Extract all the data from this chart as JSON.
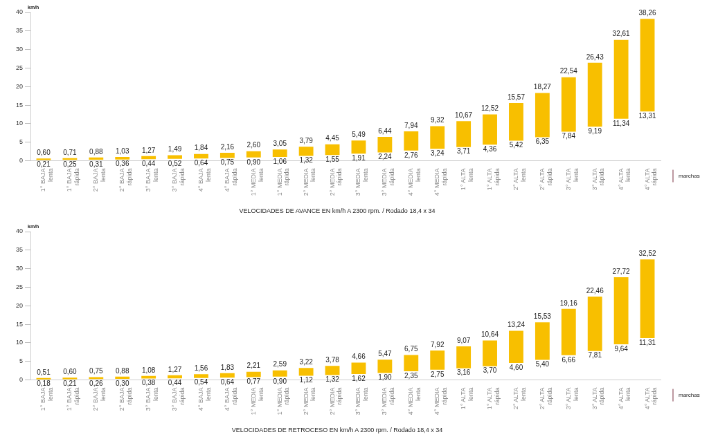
{
  "chart_data": [
    {
      "type": "bar",
      "title": "VELOCIDADES DE AVANCE EN km/h A 2300 rpm. / Rodado 18,4 x 34",
      "xlabel": "marchas",
      "ylabel": "km/h",
      "categories": [
        "1° BAJA\nlenta",
        "1° BAJA\nrápida",
        "2° BAJA\nlenta",
        "2° BAJA\nrápida",
        "3° BAJA\nlenta",
        "3° BAJA\nrápida",
        "4° BAJA\nlenta",
        "4° BAJA\nrápida",
        "1° MEDIA\nlenta",
        "1° MEDIA\nrápida",
        "2° MEDIA\nlenta",
        "2° MEDIA\nrápida",
        "3° MEDIA\nlenta",
        "3° MEDIA\nrápida",
        "4° MEDIA\nlenta",
        "4° MEDIA\nrápida",
        "1° ALTA\nlenta",
        "1° ALTA\nrápida",
        "2° ALTA\nlenta",
        "2° ALTA\nrápida",
        "3° ALTA\nlenta",
        "3° ALTA\nrápida",
        "4° ALTA\nlenta",
        "4° ALTA\nrápida"
      ],
      "base": [
        0.21,
        0.25,
        0.31,
        0.36,
        0.44,
        0.52,
        0.64,
        0.75,
        0.9,
        1.06,
        1.32,
        1.55,
        1.91,
        2.24,
        2.76,
        3.24,
        3.71,
        4.36,
        5.42,
        6.35,
        7.84,
        9.19,
        11.34,
        13.31
      ],
      "values": [
        0.39,
        0.46,
        0.57,
        0.67,
        0.83,
        0.97,
        1.2,
        1.41,
        1.7,
        1.99,
        2.47,
        2.9,
        3.58,
        4.2,
        5.18,
        6.08,
        6.96,
        8.16,
        10.15,
        11.92,
        14.7,
        17.24,
        21.27,
        24.95
      ],
      "color": "#f8bf00",
      "ylim": [
        0,
        40
      ],
      "yticks": [
        0,
        5,
        10,
        15,
        20,
        25,
        30,
        35,
        40
      ],
      "value_labels": [
        "0,60",
        "0,71",
        "0,88",
        "1,03",
        "1,27",
        "1,49",
        "1,84",
        "2,16",
        "2,60",
        "3,05",
        "3,79",
        "4,45",
        "5,49",
        "6,44",
        "7,94",
        "9,32",
        "10,67",
        "12,52",
        "15,57",
        "18,27",
        "22,54",
        "26,43",
        "32,61",
        "38,26"
      ],
      "annotations": [
        {
          "text": "0,21",
          "x": "1° BAJA\nlenta",
          "y": 0.21
        },
        {
          "text": "0,25",
          "x": "1° BAJA\nrápida",
          "y": 0.25
        },
        {
          "text": "0,31",
          "x": "2° BAJA\nlenta",
          "y": 0.31
        },
        {
          "text": "0,36",
          "x": "2° BAJA\nrápida",
          "y": 0.36
        },
        {
          "text": "0,44",
          "x": "3° BAJA\nlenta",
          "y": 0.44
        },
        {
          "text": "0,52",
          "x": "3° BAJA\nrápida",
          "y": 0.52
        },
        {
          "text": "0,64",
          "x": "4° BAJA\nlenta",
          "y": 0.64
        },
        {
          "text": "0,75",
          "x": "4° BAJA\nrápida",
          "y": 0.75
        },
        {
          "text": "0,90",
          "x": "1° MEDIA\nlenta",
          "y": 0.9
        },
        {
          "text": "1,06",
          "x": "1° MEDIA\nrápida",
          "y": 1.06
        },
        {
          "text": "1,32",
          "x": "2° MEDIA\nlenta",
          "y": 1.32
        },
        {
          "text": "1,55",
          "x": "2° MEDIA\nrápida",
          "y": 1.55
        },
        {
          "text": "1,91",
          "x": "3° MEDIA\nlenta",
          "y": 1.91
        },
        {
          "text": "2,24",
          "x": "3° MEDIA\nrápida",
          "y": 2.24
        },
        {
          "text": "2,76",
          "x": "4° MEDIA\nlenta",
          "y": 2.76
        },
        {
          "text": "3,24",
          "x": "4° MEDIA\nrápida",
          "y": 3.24
        },
        {
          "text": "3,71",
          "x": "1° ALTA\nlenta",
          "y": 3.71
        },
        {
          "text": "4,36",
          "x": "1° ALTA\nrápida",
          "y": 4.36
        },
        {
          "text": "5,42",
          "x": "2° ALTA\nlenta",
          "y": 5.42
        },
        {
          "text": "6,35",
          "x": "2° ALTA\nrápida",
          "y": 6.35
        },
        {
          "text": "7,84",
          "x": "3° ALTA\nlenta",
          "y": 7.84
        },
        {
          "text": "9,19",
          "x": "3° ALTA\nrápida",
          "y": 9.19
        },
        {
          "text": "11,34",
          "x": "4° ALTA\nlenta",
          "y": 11.34
        },
        {
          "text": "13,31",
          "x": "4° ALTA\nrápida",
          "y": 13.31
        }
      ]
    },
    {
      "type": "bar",
      "title": "VELOCIDADES DE RETROCESO EN km/h A 2300 rpm. / Rodado 18,4 x 34",
      "xlabel": "marchas",
      "ylabel": "km/h",
      "categories": [
        "1° BAJA\nlenta",
        "1° BAJA\nrápida",
        "2° BAJA\nlenta",
        "2° BAJA\nrápida",
        "3° BAJA\nlenta",
        "3° BAJA\nrápida",
        "4° BAJA\nlenta",
        "4° BAJA\nrápida",
        "1° MEDIA\nlenta",
        "1° MEDIA\nrápida",
        "2° MEDIA\nlenta",
        "2° MEDIA\nrápida",
        "3° MEDIA\nlenta",
        "3° MEDIA\nrápida",
        "4° MEDIA\nlenta",
        "4° MEDIA\nrápida",
        "1° ALTA\nlenta",
        "1° ALTA\nrápida",
        "2° ALTA\nlenta",
        "2° ALTA\nrápida",
        "3° ALTA\nlenta",
        "3° ALTA\nrápida",
        "4° ALTA\nlenta",
        "4° ALTA\nrápida"
      ],
      "base": [
        0.18,
        0.21,
        0.26,
        0.3,
        0.38,
        0.44,
        0.54,
        0.64,
        0.77,
        0.9,
        1.12,
        1.32,
        1.62,
        1.9,
        2.35,
        2.75,
        3.16,
        3.7,
        4.6,
        5.4,
        6.66,
        7.81,
        9.64,
        11.31
      ],
      "values": [
        0.33,
        0.39,
        0.49,
        0.58,
        0.7,
        0.83,
        1.02,
        1.19,
        1.44,
        1.69,
        2.1,
        2.46,
        3.04,
        3.57,
        4.4,
        5.17,
        5.91,
        6.94,
        8.64,
        10.13,
        12.5,
        14.65,
        18.08,
        21.21
      ],
      "color": "#f8bf00",
      "ylim": [
        0,
        40
      ],
      "yticks": [
        0,
        5,
        10,
        15,
        20,
        25,
        30,
        35,
        40
      ],
      "value_labels": [
        "0,51",
        "0,60",
        "0,75",
        "0,88",
        "1,08",
        "1,27",
        "1,56",
        "1,83",
        "2,21",
        "2,59",
        "3,22",
        "3,78",
        "4,66",
        "5,47",
        "6,75",
        "7,92",
        "9,07",
        "10,64",
        "13,24",
        "15,53",
        "19,16",
        "22,46",
        "27,72",
        "32,52"
      ],
      "annotations": [
        {
          "text": "0,18",
          "x": "1° BAJA\nlenta",
          "y": 0.18
        },
        {
          "text": "0,21",
          "x": "1° BAJA\nrápida",
          "y": 0.21
        },
        {
          "text": "0,26",
          "x": "2° BAJA\nlenta",
          "y": 0.26
        },
        {
          "text": "0,30",
          "x": "2° BAJA\nrápida",
          "y": 0.3
        },
        {
          "text": "0,38",
          "x": "3° BAJA\nlenta",
          "y": 0.38
        },
        {
          "text": "0,44",
          "x": "3° BAJA\nrápida",
          "y": 0.44
        },
        {
          "text": "0,54",
          "x": "4° BAJA\nlenta",
          "y": 0.54
        },
        {
          "text": "0,64",
          "x": "4° BAJA\nrápida",
          "y": 0.64
        },
        {
          "text": "0,77",
          "x": "1° MEDIA\nlenta",
          "y": 0.77
        },
        {
          "text": "0,90",
          "x": "1° MEDIA\nrápida",
          "y": 0.9
        },
        {
          "text": "1,12",
          "x": "2° MEDIA\nlenta",
          "y": 1.12
        },
        {
          "text": "1,32",
          "x": "2° MEDIA\nrápida",
          "y": 1.32
        },
        {
          "text": "1,62",
          "x": "3° MEDIA\nlenta",
          "y": 1.62
        },
        {
          "text": "1,90",
          "x": "3° MEDIA\nrápida",
          "y": 1.9
        },
        {
          "text": "2,35",
          "x": "4° MEDIA\nlenta",
          "y": 2.35
        },
        {
          "text": "2,75",
          "x": "4° MEDIA\nrápida",
          "y": 2.75
        },
        {
          "text": "3,16",
          "x": "1° ALTA\nlenta",
          "y": 3.16
        },
        {
          "text": "3,70",
          "x": "1° ALTA\nrápida",
          "y": 3.7
        },
        {
          "text": "4,60",
          "x": "2° ALTA\nlenta",
          "y": 4.6
        },
        {
          "text": "5,40",
          "x": "2° ALTA\nrápida",
          "y": 5.4
        },
        {
          "text": "6,66",
          "x": "3° ALTA\nlenta",
          "y": 6.66
        },
        {
          "text": "7,81",
          "x": "3° ALTA\nrápida",
          "y": 7.81
        },
        {
          "text": "9,64",
          "x": "4° ALTA\nlenta",
          "y": 9.64
        },
        {
          "text": "11,31",
          "x": "4° ALTA\nrápida",
          "y": 11.31
        }
      ]
    }
  ]
}
